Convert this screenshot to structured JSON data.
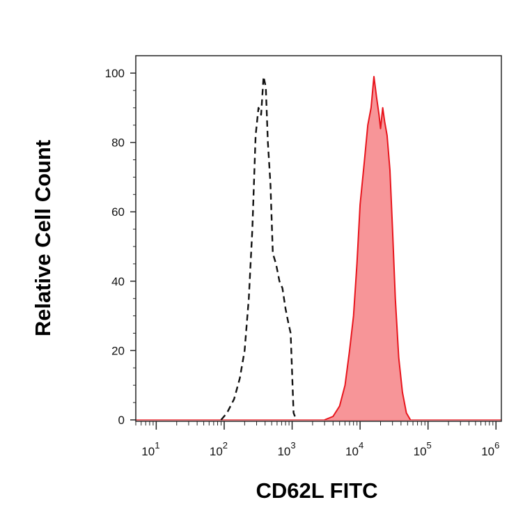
{
  "chart_data": {
    "type": "area",
    "xlabel": "CD62L FITC",
    "ylabel": "Relative Cell Count",
    "xscale": "log",
    "xlim": [
      5,
      1200000
    ],
    "ylim": [
      0,
      100
    ],
    "x_ticks": [
      {
        "value": 10,
        "base": "10",
        "exp": "1"
      },
      {
        "value": 100,
        "base": "10",
        "exp": "2"
      },
      {
        "value": 1000,
        "base": "10",
        "exp": "3"
      },
      {
        "value": 10000,
        "base": "10",
        "exp": "4"
      },
      {
        "value": 100000,
        "base": "10",
        "exp": "5"
      },
      {
        "value": 1000000,
        "base": "10",
        "exp": "6"
      }
    ],
    "y_ticks": [
      0,
      20,
      40,
      60,
      80,
      100
    ],
    "grid": false,
    "series": [
      {
        "style": "dashed",
        "color": "#111111",
        "x": [
          90,
          110,
          140,
          170,
          200,
          230,
          260,
          290,
          320,
          350,
          380,
          410,
          440,
          480,
          520,
          580,
          650,
          720,
          800,
          880,
          950,
          1050,
          1150
        ],
        "y": [
          0,
          2,
          6,
          12,
          20,
          35,
          55,
          82,
          90,
          88,
          99,
          96,
          80,
          68,
          48,
          45,
          40,
          38,
          32,
          28,
          25,
          2,
          0
        ]
      },
      {
        "style": "filled",
        "color": "#e8141c",
        "fill": "#f79598",
        "x": [
          3000,
          4000,
          5000,
          6000,
          7000,
          8000,
          9000,
          10000,
          11500,
          13000,
          14500,
          16000,
          17500,
          19000,
          20000,
          21500,
          23000,
          25000,
          27500,
          30000,
          33000,
          37000,
          42000,
          48000,
          55000
        ],
        "y": [
          0,
          1,
          4,
          10,
          20,
          30,
          45,
          62,
          74,
          85,
          90,
          99,
          93,
          88,
          84,
          90,
          86,
          82,
          72,
          55,
          35,
          18,
          8,
          2,
          0
        ]
      }
    ]
  }
}
